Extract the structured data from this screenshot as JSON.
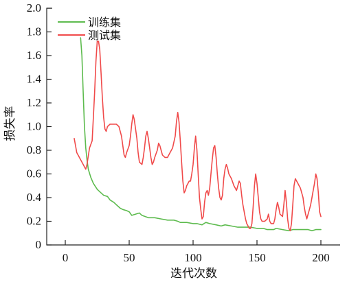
{
  "chart_data": {
    "type": "line",
    "title": "",
    "xlabel": "迭代次数",
    "ylabel": "损失率",
    "xlim": [
      -10,
      210
    ],
    "ylim": [
      0,
      2.0
    ],
    "xticks": [
      0,
      50,
      100,
      150,
      200
    ],
    "xtick_labels": [
      "0",
      "50",
      "100",
      "150",
      "200"
    ],
    "yticks": [
      0,
      0.2,
      0.4,
      0.6,
      0.8,
      1.0,
      1.2,
      1.4,
      1.6,
      1.8,
      2.0
    ],
    "ytick_labels": [
      "0",
      "0.2",
      "0.4",
      "0.6",
      "0.8",
      "1.0",
      "1.2",
      "1.4",
      "1.6",
      "1.8",
      "2.0"
    ],
    "grid": false,
    "legend_position": "top-left",
    "series": [
      {
        "name": "训练集",
        "color": "#5dbb4e",
        "points": [
          [
            12,
            1.75
          ],
          [
            13,
            1.6
          ],
          [
            14,
            1.3
          ],
          [
            15,
            1.0
          ],
          [
            16,
            0.82
          ],
          [
            17,
            0.72
          ],
          [
            18,
            0.64
          ],
          [
            20,
            0.57
          ],
          [
            22,
            0.52
          ],
          [
            25,
            0.47
          ],
          [
            27,
            0.45
          ],
          [
            30,
            0.42
          ],
          [
            33,
            0.41
          ],
          [
            35,
            0.38
          ],
          [
            38,
            0.36
          ],
          [
            40,
            0.34
          ],
          [
            43,
            0.31
          ],
          [
            45,
            0.3
          ],
          [
            48,
            0.29
          ],
          [
            50,
            0.28
          ],
          [
            52,
            0.25
          ],
          [
            55,
            0.26
          ],
          [
            58,
            0.27
          ],
          [
            60,
            0.25
          ],
          [
            65,
            0.23
          ],
          [
            70,
            0.23
          ],
          [
            75,
            0.22
          ],
          [
            80,
            0.21
          ],
          [
            85,
            0.21
          ],
          [
            88,
            0.2
          ],
          [
            90,
            0.19
          ],
          [
            95,
            0.19
          ],
          [
            100,
            0.18
          ],
          [
            103,
            0.18
          ],
          [
            107,
            0.17
          ],
          [
            110,
            0.19
          ],
          [
            113,
            0.18
          ],
          [
            118,
            0.17
          ],
          [
            122,
            0.16
          ],
          [
            125,
            0.17
          ],
          [
            130,
            0.16
          ],
          [
            135,
            0.15
          ],
          [
            140,
            0.15
          ],
          [
            145,
            0.15
          ],
          [
            150,
            0.14
          ],
          [
            155,
            0.14
          ],
          [
            158,
            0.13
          ],
          [
            160,
            0.13
          ],
          [
            163,
            0.13
          ],
          [
            165,
            0.14
          ],
          [
            170,
            0.13
          ],
          [
            175,
            0.12
          ],
          [
            178,
            0.13
          ],
          [
            182,
            0.13
          ],
          [
            186,
            0.13
          ],
          [
            190,
            0.13
          ],
          [
            193,
            0.12
          ],
          [
            196,
            0.13
          ],
          [
            200,
            0.13
          ]
        ]
      },
      {
        "name": "测试集",
        "color": "#f04a4a",
        "points": [
          [
            7,
            0.9
          ],
          [
            8,
            0.84
          ],
          [
            9,
            0.78
          ],
          [
            11,
            0.74
          ],
          [
            13,
            0.7
          ],
          [
            15,
            0.66
          ],
          [
            16,
            0.64
          ],
          [
            17,
            0.68
          ],
          [
            19,
            0.82
          ],
          [
            21,
            0.88
          ],
          [
            22,
            1.08
          ],
          [
            23,
            1.3
          ],
          [
            24,
            1.55
          ],
          [
            25,
            1.72
          ],
          [
            26,
            1.72
          ],
          [
            27,
            1.65
          ],
          [
            28,
            1.45
          ],
          [
            29,
            1.25
          ],
          [
            30,
            1.08
          ],
          [
            31,
            0.98
          ],
          [
            32,
            0.96
          ],
          [
            33,
            1.0
          ],
          [
            35,
            1.02
          ],
          [
            38,
            1.02
          ],
          [
            40,
            1.02
          ],
          [
            42,
            1.0
          ],
          [
            44,
            0.92
          ],
          [
            45,
            0.84
          ],
          [
            46,
            0.76
          ],
          [
            47,
            0.74
          ],
          [
            48,
            0.78
          ],
          [
            50,
            0.84
          ],
          [
            51,
            0.92
          ],
          [
            52,
            1.02
          ],
          [
            53,
            1.1
          ],
          [
            54,
            1.06
          ],
          [
            55,
            0.98
          ],
          [
            56,
            0.9
          ],
          [
            57,
            0.78
          ],
          [
            58,
            0.7
          ],
          [
            60,
            0.68
          ],
          [
            61,
            0.74
          ],
          [
            62,
            0.82
          ],
          [
            63,
            0.92
          ],
          [
            64,
            0.96
          ],
          [
            65,
            0.9
          ],
          [
            66,
            0.82
          ],
          [
            67,
            0.74
          ],
          [
            68,
            0.68
          ],
          [
            69,
            0.7
          ],
          [
            70,
            0.74
          ],
          [
            72,
            0.8
          ],
          [
            73,
            0.86
          ],
          [
            74,
            0.84
          ],
          [
            75,
            0.8
          ],
          [
            76,
            0.76
          ],
          [
            78,
            0.74
          ],
          [
            80,
            0.74
          ],
          [
            82,
            0.78
          ],
          [
            84,
            0.82
          ],
          [
            86,
            0.92
          ],
          [
            87,
            1.04
          ],
          [
            88,
            1.12
          ],
          [
            89,
            1.04
          ],
          [
            90,
            0.88
          ],
          [
            91,
            0.7
          ],
          [
            92,
            0.54
          ],
          [
            93,
            0.44
          ],
          [
            94,
            0.46
          ],
          [
            95,
            0.5
          ],
          [
            96,
            0.52
          ],
          [
            97,
            0.54
          ],
          [
            98,
            0.54
          ],
          [
            99,
            0.6
          ],
          [
            100,
            0.68
          ],
          [
            101,
            0.82
          ],
          [
            102,
            0.92
          ],
          [
            103,
            0.8
          ],
          [
            104,
            0.6
          ],
          [
            105,
            0.4
          ],
          [
            106,
            0.3
          ],
          [
            107,
            0.22
          ],
          [
            108,
            0.24
          ],
          [
            109,
            0.36
          ],
          [
            110,
            0.44
          ],
          [
            111,
            0.46
          ],
          [
            112,
            0.42
          ],
          [
            113,
            0.48
          ],
          [
            114,
            0.6
          ],
          [
            115,
            0.72
          ],
          [
            116,
            0.82
          ],
          [
            117,
            0.84
          ],
          [
            118,
            0.74
          ],
          [
            119,
            0.6
          ],
          [
            120,
            0.48
          ],
          [
            121,
            0.4
          ],
          [
            122,
            0.38
          ],
          [
            123,
            0.42
          ],
          [
            124,
            0.56
          ],
          [
            125,
            0.64
          ],
          [
            126,
            0.68
          ],
          [
            127,
            0.65
          ],
          [
            128,
            0.6
          ],
          [
            130,
            0.56
          ],
          [
            132,
            0.5
          ],
          [
            133,
            0.48
          ],
          [
            134,
            0.46
          ],
          [
            135,
            0.5
          ],
          [
            136,
            0.54
          ],
          [
            137,
            0.52
          ],
          [
            138,
            0.42
          ],
          [
            139,
            0.34
          ],
          [
            140,
            0.28
          ],
          [
            141,
            0.22
          ],
          [
            142,
            0.18
          ],
          [
            143,
            0.16
          ],
          [
            144,
            0.14
          ],
          [
            145,
            0.14
          ],
          [
            146,
            0.18
          ],
          [
            147,
            0.32
          ],
          [
            148,
            0.5
          ],
          [
            149,
            0.6
          ],
          [
            150,
            0.52
          ],
          [
            151,
            0.4
          ],
          [
            152,
            0.28
          ],
          [
            153,
            0.22
          ],
          [
            154,
            0.2
          ],
          [
            156,
            0.2
          ],
          [
            158,
            0.22
          ],
          [
            159,
            0.26
          ],
          [
            160,
            0.2
          ],
          [
            161,
            0.18
          ],
          [
            163,
            0.18
          ],
          [
            164,
            0.22
          ],
          [
            165,
            0.3
          ],
          [
            166,
            0.36
          ],
          [
            167,
            0.32
          ],
          [
            168,
            0.26
          ],
          [
            170,
            0.24
          ],
          [
            171,
            0.34
          ],
          [
            172,
            0.46
          ],
          [
            173,
            0.36
          ],
          [
            174,
            0.22
          ],
          [
            175,
            0.14
          ],
          [
            176,
            0.12
          ],
          [
            177,
            0.18
          ],
          [
            178,
            0.34
          ],
          [
            179,
            0.5
          ],
          [
            180,
            0.56
          ],
          [
            181,
            0.54
          ],
          [
            182,
            0.52
          ],
          [
            184,
            0.48
          ],
          [
            185,
            0.44
          ],
          [
            186,
            0.4
          ],
          [
            187,
            0.32
          ],
          [
            188,
            0.26
          ],
          [
            189,
            0.22
          ],
          [
            190,
            0.26
          ],
          [
            191,
            0.3
          ],
          [
            192,
            0.34
          ],
          [
            193,
            0.4
          ],
          [
            194,
            0.46
          ],
          [
            195,
            0.52
          ],
          [
            196,
            0.6
          ],
          [
            197,
            0.56
          ],
          [
            198,
            0.44
          ],
          [
            199,
            0.28
          ],
          [
            200,
            0.24
          ]
        ]
      }
    ]
  }
}
